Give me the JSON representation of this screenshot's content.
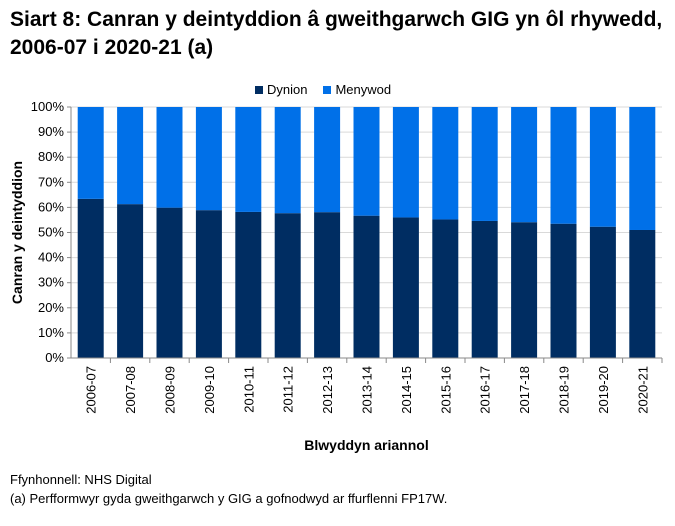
{
  "chart_data": {
    "type": "bar",
    "stacked": true,
    "title": "Siart 8: Canran y deintyddion â gweithgarwch GIG yn ôl rhywedd, 2006-07 i 2020-21 (a)",
    "xlabel": "Blwyddyn ariannol",
    "ylabel": "Canran y deintyddion",
    "ylim": [
      0,
      100
    ],
    "yticks": [
      "0%",
      "10%",
      "20%",
      "30%",
      "40%",
      "50%",
      "60%",
      "70%",
      "80%",
      "90%",
      "100%"
    ],
    "grid": true,
    "legend": "top",
    "categories": [
      "2006-07",
      "2007-08",
      "2008-09",
      "2009-10",
      "2010-11",
      "2011-12",
      "2012-13",
      "2013-14",
      "2014-15",
      "2015-16",
      "2016-17",
      "2017-18",
      "2018-19",
      "2019-20",
      "2020-21"
    ],
    "series": [
      {
        "name": "Dynion",
        "color": "#002D62",
        "values": [
          63.4,
          61.3,
          59.9,
          58.9,
          58.2,
          57.7,
          58.1,
          56.7,
          56.0,
          55.2,
          54.6,
          54.1,
          53.5,
          52.3,
          51.0
        ]
      },
      {
        "name": "Menywod",
        "color": "#0070E8",
        "values": [
          36.6,
          38.7,
          40.1,
          41.1,
          41.8,
          42.3,
          41.9,
          43.3,
          44.0,
          44.8,
          45.4,
          45.9,
          46.5,
          47.7,
          49.0
        ]
      }
    ]
  },
  "footer": {
    "source": "Ffynhonnell: NHS Digital",
    "note": "(a) Perfformwyr gyda gweithgarwch y GIG a gofnodwyd ar ffurflenni FP17W."
  }
}
